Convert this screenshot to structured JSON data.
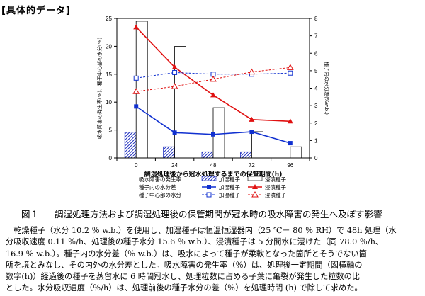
{
  "header": {
    "title": "[具体的データ]"
  },
  "chart_data": {
    "type": "bar+line",
    "x": [
      0,
      24,
      48,
      72,
      96
    ],
    "xlabel": "調湿処理後から冠水処理するまでの保管期間(h)",
    "y_left": {
      "label": "吸水障害の発生率(%)、種子中心部の水分(%)",
      "ylim": [
        0,
        25
      ],
      "ticks": [
        0,
        5,
        10,
        15,
        20,
        25
      ]
    },
    "y_right": {
      "label": "種子内の水分差(%w.b.)",
      "ylim": [
        0,
        8
      ],
      "ticks": [
        0,
        1,
        2,
        3,
        4,
        5,
        6,
        7,
        8
      ]
    },
    "series": [
      {
        "name": "加湿種子",
        "kind": "bar",
        "axis": "left",
        "values": [
          4.6,
          2.0,
          1.1,
          1.1,
          null
        ],
        "pattern": "hatched"
      },
      {
        "name": "浸漬種子",
        "kind": "bar",
        "axis": "left",
        "values": [
          24.5,
          20.0,
          9.0,
          4.7,
          2.0
        ],
        "pattern": "white"
      },
      {
        "name": "加湿種子",
        "kind": "line",
        "axis": "right",
        "values": [
          2.95,
          1.45,
          1.35,
          1.5,
          0.85
        ],
        "color": "#1030d0",
        "marker": "square"
      },
      {
        "name": "浸漬種子",
        "kind": "line",
        "axis": "right",
        "values": [
          7.5,
          5.2,
          3.6,
          2.2,
          2.1
        ],
        "color": "#e01010",
        "marker": "triangle"
      },
      {
        "name": "加湿種子",
        "kind": "line",
        "axis": "left",
        "dashed": true,
        "values": [
          14.3,
          15.3,
          15.0,
          15.0,
          15.2
        ],
        "color": "#1030d0",
        "marker": "open-square"
      },
      {
        "name": "浸漬種子",
        "kind": "line",
        "axis": "left",
        "dashed": true,
        "values": [
          11.9,
          12.8,
          14.1,
          15.4,
          16.2
        ],
        "color": "#e01010",
        "marker": "open-triangle"
      }
    ],
    "legend": {
      "row_labels": [
        "吸水障害の発生率",
        "種子内の水分差",
        "種子中心部の水分"
      ],
      "col_labels": [
        "加湿種子",
        "浸漬種子"
      ],
      "placement": "bottom"
    }
  },
  "caption": {
    "number": "図１",
    "text": "調湿処理方法および調湿処理後の保管期間が冠水時の吸水障害の発生へ及ぼす影響"
  },
  "note": {
    "lines": [
      "　乾燥種子（水分 10.2 ％ w.b.）を使用し、加湿種子は恒温恒湿器内（25 ℃－ 80 ％ RH）で 48h 処理（水",
      "分吸収速度 0.11 ％/h、処理後の種子水分 15.6 ％ w.b.）、浸漬種子は 5 分間水に浸けた（同 78.0 ％/h、",
      "16.9 ％ w.b.）。種子内の水分差（％ w.b.）は、吸水によって種子が柔軟となった箇所とそうでない箇",
      "所を境とみなし、その内外の水分差とした。吸水障害の発生率（％）は、処理後一定期間（図横軸の",
      "数字(h)）経過後の種子を蒸留水に 6 時間冠水し、処理粒数に占める子葉に亀裂が発生した粒数の比",
      "とした。水分吸収速度（％/h）は、処理前後の種子水分の差（％）を処理時間 (h) で除して求めた。"
    ]
  }
}
